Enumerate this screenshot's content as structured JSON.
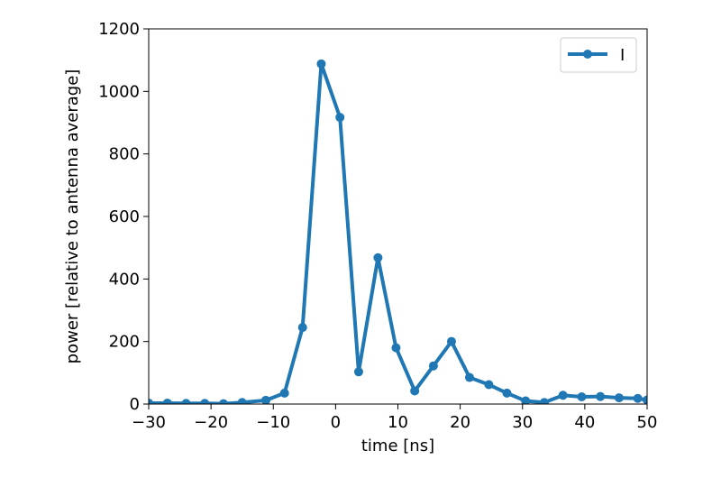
{
  "chart_data": {
    "type": "line",
    "title": "",
    "xlabel": "time [ns]",
    "ylabel": "power [relative to antenna average]",
    "xlim": [
      -30,
      50
    ],
    "ylim": [
      0,
      1200
    ],
    "xticks": [
      -30,
      -20,
      -10,
      0,
      10,
      20,
      30,
      40,
      50
    ],
    "xtick_labels": [
      "−30",
      "−20",
      "−10",
      "0",
      "10",
      "20",
      "30",
      "40",
      "50"
    ],
    "yticks": [
      0,
      200,
      400,
      600,
      800,
      1000,
      1200
    ],
    "ytick_labels": [
      "0",
      "200",
      "400",
      "600",
      "800",
      "1000",
      "1200"
    ],
    "grid": false,
    "legend_position": "top-right",
    "series": [
      {
        "name": "I",
        "color": "#1f77b4",
        "marker": "circle",
        "x": [
          -30,
          -27,
          -24,
          -21,
          -18,
          -15,
          -11.2,
          -8.2,
          -5.3,
          -2.3,
          0.7,
          3.7,
          6.8,
          9.7,
          12.7,
          15.7,
          18.6,
          21.5,
          24.6,
          27.5,
          30.5,
          33.5,
          36.5,
          39.5,
          42.5,
          45.5,
          48.5,
          50
        ],
        "y": [
          3,
          3,
          2,
          2,
          1,
          5,
          12,
          35,
          245,
          1088,
          917,
          103,
          468,
          180,
          42,
          122,
          200,
          85,
          62,
          35,
          10,
          5,
          28,
          23,
          24,
          20,
          18,
          13
        ]
      }
    ]
  }
}
